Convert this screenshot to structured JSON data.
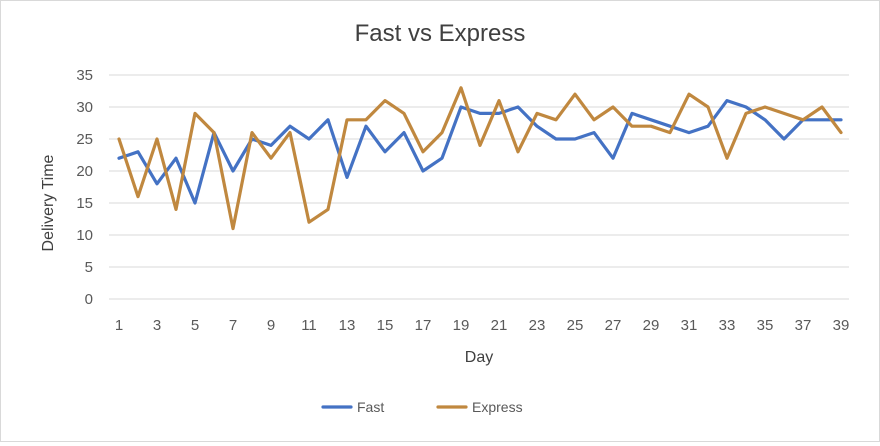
{
  "chart_data": {
    "type": "line",
    "title": "Fast vs Express",
    "xlabel": "Day",
    "ylabel": "Delivery Time",
    "x": [
      1,
      2,
      3,
      4,
      5,
      6,
      7,
      8,
      9,
      10,
      11,
      12,
      13,
      14,
      15,
      16,
      17,
      18,
      19,
      20,
      21,
      22,
      23,
      24,
      25,
      26,
      27,
      28,
      29,
      30,
      31,
      32,
      33,
      34,
      35,
      36,
      37,
      38,
      39
    ],
    "x_tick_labels": [
      "1",
      "3",
      "5",
      "7",
      "9",
      "11",
      "13",
      "15",
      "17",
      "19",
      "21",
      "23",
      "25",
      "27",
      "29",
      "31",
      "33",
      "35",
      "37",
      "39"
    ],
    "ylim": [
      0,
      35
    ],
    "y_ticks": [
      0,
      5,
      10,
      15,
      20,
      25,
      30,
      35
    ],
    "grid": true,
    "legend_position": "bottom",
    "series": [
      {
        "name": "Fast",
        "color": "#4472C4",
        "values": [
          22,
          23,
          18,
          22,
          15,
          26,
          20,
          25,
          24,
          27,
          25,
          28,
          19,
          27,
          23,
          26,
          20,
          22,
          30,
          29,
          29,
          30,
          27,
          25,
          25,
          26,
          22,
          29,
          28,
          27,
          26,
          27,
          31,
          30,
          28,
          25,
          28,
          28,
          28
        ]
      },
      {
        "name": "Express",
        "color": "#C0883F",
        "values": [
          25,
          16,
          25,
          14,
          29,
          26,
          11,
          26,
          22,
          26,
          12,
          14,
          28,
          28,
          31,
          29,
          23,
          26,
          33,
          24,
          31,
          23,
          29,
          28,
          32,
          28,
          30,
          27,
          27,
          26,
          32,
          30,
          22,
          29,
          30,
          29,
          28,
          30,
          26
        ]
      }
    ]
  }
}
